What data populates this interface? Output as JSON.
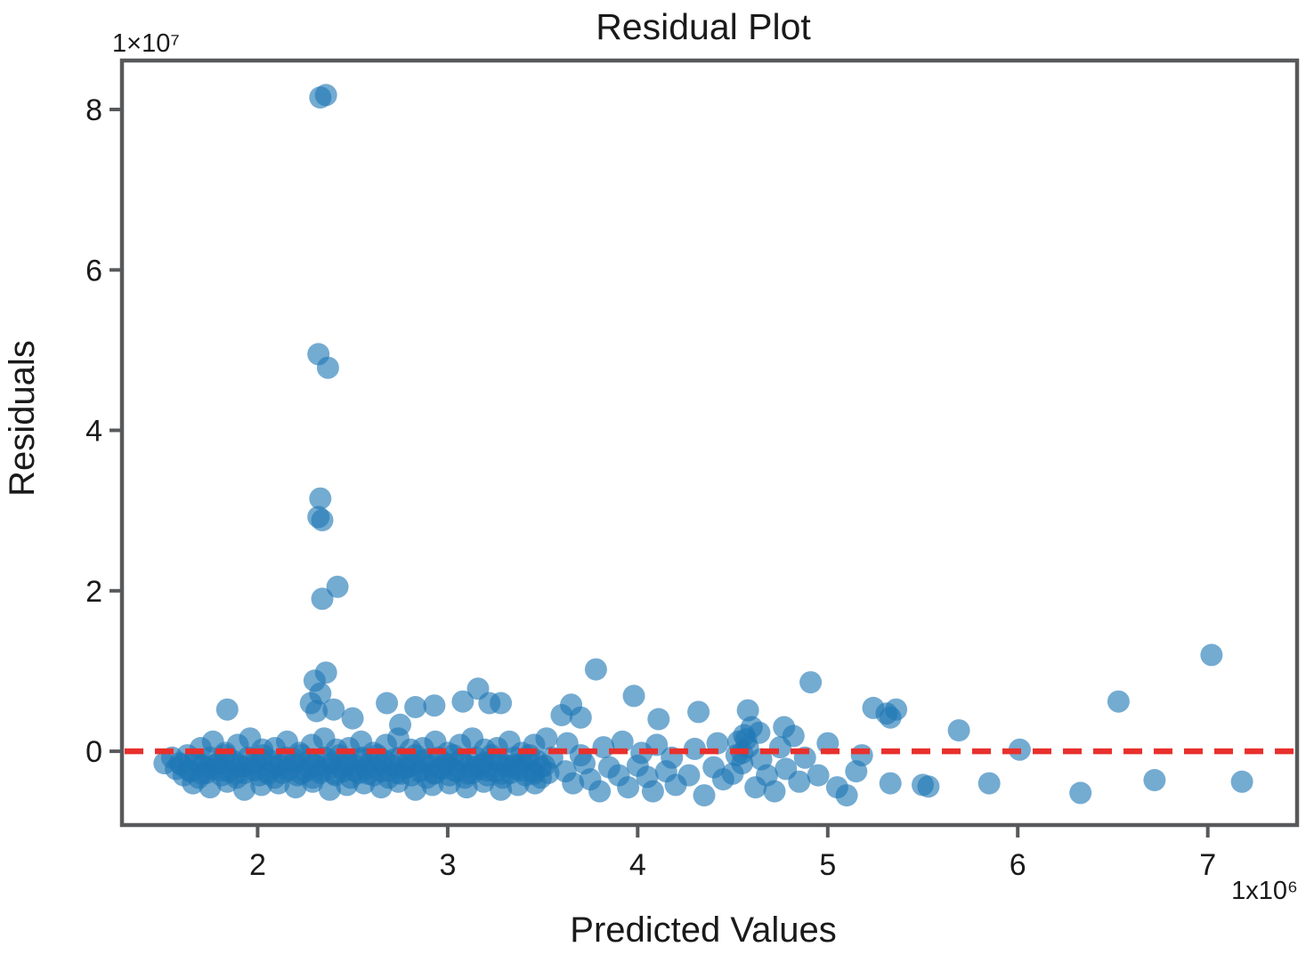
{
  "page": {
    "background": "#ffffff"
  },
  "chart_data": {
    "type": "scatter",
    "title": "Residual Plot",
    "xlabel": "Predicted Values",
    "ylabel": "Residuals",
    "x_multiplier_label": "1x10⁶",
    "y_multiplier_label": "1×10⁷",
    "x_ticks": [
      2,
      3,
      4,
      5,
      6,
      7
    ],
    "y_ticks": [
      0,
      2,
      4,
      6,
      8
    ],
    "xlim": [
      1.286,
      7.47
    ],
    "ylim": [
      -0.92,
      8.61
    ],
    "x_unit": 1000000,
    "y_unit": 10000000,
    "grid": false,
    "legend": "none",
    "frame_color": "#58595b",
    "tick_color": "#58595b",
    "point_color": "#1f77b4",
    "point_opacity": 0.62,
    "point_radius": 12.5,
    "zero_line": {
      "y": 0,
      "color": "#e8302d",
      "style": "dashed",
      "width": 6.5,
      "dash": "21 13"
    },
    "points": [
      [
        1.51,
        -0.15
      ],
      [
        1.55,
        -0.08
      ],
      [
        1.57,
        -0.22
      ],
      [
        1.59,
        -0.15
      ],
      [
        1.61,
        -0.3
      ],
      [
        1.63,
        -0.05
      ],
      [
        1.65,
        -0.25
      ],
      [
        1.67,
        -0.12
      ],
      [
        1.69,
        -0.33
      ],
      [
        1.71,
        -0.18
      ],
      [
        1.73,
        -0.27
      ],
      [
        1.75,
        -0.08
      ],
      [
        1.77,
        -0.22
      ],
      [
        1.79,
        -0.15
      ],
      [
        1.81,
        -0.3
      ],
      [
        1.83,
        -0.05
      ],
      [
        1.85,
        -0.25
      ],
      [
        1.87,
        -0.12
      ],
      [
        1.89,
        -0.33
      ],
      [
        1.91,
        -0.18
      ],
      [
        1.93,
        -0.27
      ],
      [
        1.95,
        -0.08
      ],
      [
        1.97,
        -0.22
      ],
      [
        1.99,
        -0.15
      ],
      [
        2.01,
        -0.3
      ],
      [
        2.03,
        -0.05
      ],
      [
        2.05,
        -0.25
      ],
      [
        2.07,
        -0.12
      ],
      [
        2.09,
        -0.33
      ],
      [
        2.11,
        -0.18
      ],
      [
        2.13,
        -0.27
      ],
      [
        2.15,
        -0.08
      ],
      [
        2.17,
        -0.22
      ],
      [
        2.19,
        -0.15
      ],
      [
        2.21,
        -0.3
      ],
      [
        2.23,
        -0.05
      ],
      [
        2.25,
        -0.25
      ],
      [
        2.27,
        -0.12
      ],
      [
        2.29,
        -0.33
      ],
      [
        2.31,
        -0.18
      ],
      [
        2.33,
        -0.27
      ],
      [
        2.35,
        -0.08
      ],
      [
        2.37,
        -0.22
      ],
      [
        2.39,
        -0.15
      ],
      [
        2.41,
        -0.3
      ],
      [
        2.43,
        -0.05
      ],
      [
        2.45,
        -0.25
      ],
      [
        2.47,
        -0.12
      ],
      [
        2.49,
        -0.33
      ],
      [
        2.51,
        -0.18
      ],
      [
        2.53,
        -0.27
      ],
      [
        2.55,
        -0.08
      ],
      [
        2.57,
        -0.22
      ],
      [
        2.59,
        -0.15
      ],
      [
        2.61,
        -0.3
      ],
      [
        2.63,
        -0.05
      ],
      [
        2.65,
        -0.25
      ],
      [
        2.67,
        -0.12
      ],
      [
        2.69,
        -0.33
      ],
      [
        2.71,
        -0.18
      ],
      [
        2.73,
        -0.27
      ],
      [
        2.75,
        -0.08
      ],
      [
        2.77,
        -0.22
      ],
      [
        2.79,
        -0.15
      ],
      [
        2.81,
        -0.3
      ],
      [
        2.83,
        -0.05
      ],
      [
        2.85,
        -0.25
      ],
      [
        2.87,
        -0.12
      ],
      [
        2.89,
        -0.33
      ],
      [
        2.91,
        -0.18
      ],
      [
        2.93,
        -0.27
      ],
      [
        2.95,
        -0.08
      ],
      [
        2.97,
        -0.22
      ],
      [
        2.99,
        -0.15
      ],
      [
        3.01,
        -0.3
      ],
      [
        3.03,
        -0.05
      ],
      [
        3.05,
        -0.25
      ],
      [
        3.07,
        -0.12
      ],
      [
        3.09,
        -0.33
      ],
      [
        3.11,
        -0.18
      ],
      [
        3.13,
        -0.27
      ],
      [
        3.15,
        -0.08
      ],
      [
        3.17,
        -0.22
      ],
      [
        3.19,
        -0.15
      ],
      [
        3.21,
        -0.3
      ],
      [
        3.23,
        -0.05
      ],
      [
        3.25,
        -0.25
      ],
      [
        3.27,
        -0.12
      ],
      [
        3.29,
        -0.33
      ],
      [
        3.31,
        -0.18
      ],
      [
        3.33,
        -0.27
      ],
      [
        3.35,
        -0.08
      ],
      [
        3.37,
        -0.22
      ],
      [
        3.39,
        -0.15
      ],
      [
        3.41,
        -0.3
      ],
      [
        3.43,
        -0.05
      ],
      [
        3.45,
        -0.25
      ],
      [
        3.47,
        -0.12
      ],
      [
        3.49,
        -0.33
      ],
      [
        3.51,
        -0.18
      ],
      [
        3.53,
        -0.27
      ],
      [
        3.55,
        -0.08
      ],
      [
        1.6,
        -0.17
      ],
      [
        1.635,
        -0.24
      ],
      [
        1.67,
        -0.1
      ],
      [
        1.705,
        -0.28
      ],
      [
        1.74,
        -0.2
      ],
      [
        1.775,
        -0.17
      ],
      [
        1.81,
        -0.24
      ],
      [
        1.845,
        -0.1
      ],
      [
        1.88,
        -0.28
      ],
      [
        1.915,
        -0.2
      ],
      [
        1.95,
        -0.17
      ],
      [
        1.985,
        -0.24
      ],
      [
        2.02,
        -0.1
      ],
      [
        2.055,
        -0.28
      ],
      [
        2.09,
        -0.2
      ],
      [
        2.125,
        -0.17
      ],
      [
        2.16,
        -0.24
      ],
      [
        2.195,
        -0.1
      ],
      [
        2.23,
        -0.28
      ],
      [
        2.265,
        -0.2
      ],
      [
        2.3,
        -0.17
      ],
      [
        2.335,
        -0.24
      ],
      [
        2.37,
        -0.1
      ],
      [
        2.405,
        -0.28
      ],
      [
        2.44,
        -0.2
      ],
      [
        2.475,
        -0.17
      ],
      [
        2.51,
        -0.24
      ],
      [
        2.545,
        -0.1
      ],
      [
        2.58,
        -0.28
      ],
      [
        2.615,
        -0.2
      ],
      [
        2.65,
        -0.17
      ],
      [
        2.685,
        -0.24
      ],
      [
        2.72,
        -0.1
      ],
      [
        2.755,
        -0.28
      ],
      [
        2.79,
        -0.2
      ],
      [
        2.825,
        -0.17
      ],
      [
        2.86,
        -0.24
      ],
      [
        2.895,
        -0.1
      ],
      [
        2.93,
        -0.28
      ],
      [
        2.965,
        -0.2
      ],
      [
        3.0,
        -0.17
      ],
      [
        3.035,
        -0.24
      ],
      [
        3.07,
        -0.1
      ],
      [
        3.105,
        -0.28
      ],
      [
        3.14,
        -0.2
      ],
      [
        3.175,
        -0.17
      ],
      [
        3.21,
        -0.24
      ],
      [
        3.245,
        -0.1
      ],
      [
        3.28,
        -0.28
      ],
      [
        3.315,
        -0.2
      ],
      [
        3.35,
        -0.17
      ],
      [
        3.385,
        -0.24
      ],
      [
        3.42,
        -0.1
      ],
      [
        3.455,
        -0.28
      ],
      [
        3.49,
        -0.2
      ],
      [
        1.7,
        0.04
      ],
      [
        1.765,
        0.12
      ],
      [
        1.83,
        -0.02
      ],
      [
        1.895,
        0.08
      ],
      [
        1.96,
        0.16
      ],
      [
        2.025,
        0.02
      ],
      [
        2.09,
        0.04
      ],
      [
        2.155,
        0.12
      ],
      [
        2.22,
        -0.02
      ],
      [
        2.285,
        0.08
      ],
      [
        2.35,
        0.16
      ],
      [
        2.415,
        0.02
      ],
      [
        2.48,
        0.04
      ],
      [
        2.545,
        0.12
      ],
      [
        2.61,
        -0.02
      ],
      [
        2.675,
        0.08
      ],
      [
        2.74,
        0.16
      ],
      [
        2.805,
        0.02
      ],
      [
        2.87,
        0.04
      ],
      [
        2.935,
        0.12
      ],
      [
        3.0,
        -0.02
      ],
      [
        3.065,
        0.08
      ],
      [
        3.13,
        0.16
      ],
      [
        3.195,
        0.02
      ],
      [
        3.26,
        0.04
      ],
      [
        3.325,
        0.12
      ],
      [
        3.39,
        -0.02
      ],
      [
        3.455,
        0.08
      ],
      [
        3.52,
        0.16
      ],
      [
        1.66,
        -0.4
      ],
      [
        1.75,
        -0.45
      ],
      [
        1.84,
        -0.38
      ],
      [
        1.93,
        -0.48
      ],
      [
        2.02,
        -0.42
      ],
      [
        2.11,
        -0.4
      ],
      [
        2.2,
        -0.45
      ],
      [
        2.29,
        -0.38
      ],
      [
        2.38,
        -0.48
      ],
      [
        2.47,
        -0.42
      ],
      [
        2.56,
        -0.4
      ],
      [
        2.65,
        -0.45
      ],
      [
        2.74,
        -0.38
      ],
      [
        2.83,
        -0.48
      ],
      [
        2.92,
        -0.42
      ],
      [
        3.01,
        -0.4
      ],
      [
        3.1,
        -0.45
      ],
      [
        3.19,
        -0.38
      ],
      [
        3.28,
        -0.48
      ],
      [
        3.37,
        -0.42
      ],
      [
        3.46,
        -0.4
      ],
      [
        3.62,
        -0.25
      ],
      [
        3.66,
        -0.4
      ],
      [
        3.72,
        -0.15
      ],
      [
        3.75,
        -0.35
      ],
      [
        3.8,
        -0.5
      ],
      [
        3.85,
        -0.2
      ],
      [
        3.9,
        -0.3
      ],
      [
        3.95,
        -0.45
      ],
      [
        4.0,
        -0.18
      ],
      [
        4.05,
        -0.32
      ],
      [
        4.08,
        -0.5
      ],
      [
        4.15,
        -0.25
      ],
      [
        4.2,
        -0.42
      ],
      [
        4.27,
        -0.3
      ],
      [
        4.35,
        -0.55
      ],
      [
        4.4,
        -0.2
      ],
      [
        4.45,
        -0.35
      ],
      [
        4.5,
        -0.28
      ],
      [
        4.55,
        -0.15
      ],
      [
        4.62,
        -0.45
      ],
      [
        4.68,
        -0.3
      ],
      [
        4.72,
        -0.5
      ],
      [
        4.78,
        -0.22
      ],
      [
        4.85,
        -0.38
      ],
      [
        4.95,
        -0.3
      ],
      [
        5.05,
        -0.45
      ],
      [
        5.1,
        -0.55
      ],
      [
        5.15,
        -0.25
      ],
      [
        3.63,
        0.1
      ],
      [
        3.7,
        -0.05
      ],
      [
        3.82,
        0.05
      ],
      [
        3.92,
        0.12
      ],
      [
        4.02,
        -0.02
      ],
      [
        4.1,
        0.08
      ],
      [
        4.18,
        -0.08
      ],
      [
        4.3,
        0.03
      ],
      [
        4.42,
        0.1
      ],
      [
        4.52,
        -0.05
      ],
      [
        4.57,
        0.15
      ],
      [
        4.65,
        -0.1
      ],
      [
        4.75,
        0.05
      ],
      [
        4.88,
        -0.08
      ],
      [
        5.0,
        0.1
      ],
      [
        5.18,
        -0.05
      ],
      [
        4.56,
        0.2
      ],
      [
        4.53,
        0.12
      ],
      [
        4.58,
        0.05
      ],
      [
        4.55,
        -0.02
      ],
      [
        2.33,
        8.15
      ],
      [
        2.36,
        8.18
      ],
      [
        2.32,
        4.95
      ],
      [
        2.37,
        4.78
      ],
      [
        2.33,
        3.15
      ],
      [
        2.32,
        2.92
      ],
      [
        2.34,
        2.88
      ],
      [
        2.42,
        2.05
      ],
      [
        2.34,
        1.9
      ],
      [
        2.36,
        0.98
      ],
      [
        2.3,
        0.88
      ],
      [
        2.33,
        0.72
      ],
      [
        2.28,
        0.6
      ],
      [
        2.4,
        0.52
      ],
      [
        2.31,
        0.5
      ],
      [
        1.84,
        0.52
      ],
      [
        2.5,
        0.41
      ],
      [
        2.68,
        0.6
      ],
      [
        2.75,
        0.33
      ],
      [
        2.83,
        0.55
      ],
      [
        2.93,
        0.57
      ],
      [
        3.08,
        0.62
      ],
      [
        3.16,
        0.78
      ],
      [
        3.22,
        0.6
      ],
      [
        3.28,
        0.6
      ],
      [
        3.6,
        0.45
      ],
      [
        3.65,
        0.58
      ],
      [
        3.7,
        0.42
      ],
      [
        3.78,
        1.02
      ],
      [
        3.98,
        0.69
      ],
      [
        4.11,
        0.4
      ],
      [
        4.32,
        0.49
      ],
      [
        4.58,
        0.51
      ],
      [
        4.6,
        0.3
      ],
      [
        4.64,
        0.23
      ],
      [
        4.77,
        0.3
      ],
      [
        4.82,
        0.19
      ],
      [
        4.91,
        0.86
      ],
      [
        5.24,
        0.54
      ],
      [
        5.31,
        0.47
      ],
      [
        5.33,
        0.42
      ],
      [
        5.36,
        0.52
      ],
      [
        5.69,
        0.26
      ],
      [
        6.01,
        0.02
      ],
      [
        6.53,
        0.62
      ],
      [
        7.02,
        1.2
      ],
      [
        5.33,
        -0.4
      ],
      [
        5.5,
        -0.42
      ],
      [
        5.53,
        -0.44
      ],
      [
        5.85,
        -0.4
      ],
      [
        6.33,
        -0.52
      ],
      [
        6.72,
        -0.36
      ],
      [
        7.18,
        -0.38
      ]
    ]
  }
}
